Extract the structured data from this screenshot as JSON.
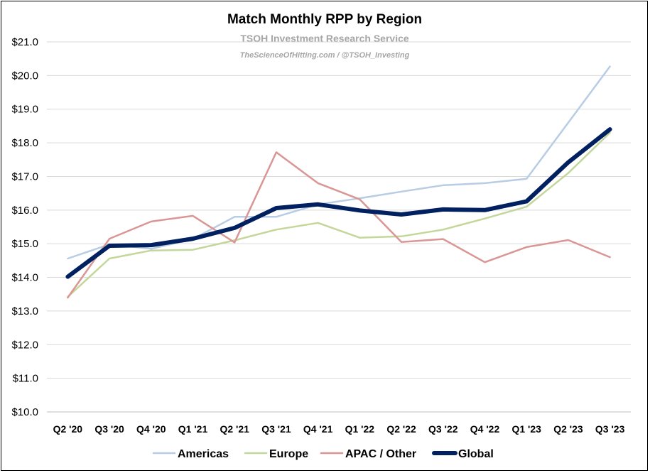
{
  "chart_data": {
    "type": "line",
    "title": "Match Monthly RPP by Region",
    "subtitle": "TSOH Investment Research Service",
    "credit": "TheScienceOfHitting.com / @TSOH_Investing",
    "xlabel": "",
    "ylabel": "",
    "ylim": [
      10.0,
      21.0
    ],
    "y_ticks": [
      "$10.0",
      "$11.0",
      "$12.0",
      "$13.0",
      "$14.0",
      "$15.0",
      "$16.0",
      "$17.0",
      "$18.0",
      "$19.0",
      "$20.0",
      "$21.0"
    ],
    "grid": true,
    "legend_position": "bottom",
    "categories": [
      "Q2 '20",
      "Q3 '20",
      "Q4 '20",
      "Q1 '21",
      "Q2 '21",
      "Q3 '21",
      "Q4 '21",
      "Q1 '22",
      "Q2 '22",
      "Q3 '22",
      "Q4 '22",
      "Q1 '23",
      "Q2 '23",
      "Q3 '23"
    ],
    "series": [
      {
        "name": "Americas",
        "color": "#b8cce4",
        "emphasis": false,
        "values": [
          14.56,
          14.98,
          14.85,
          15.14,
          15.8,
          15.8,
          16.17,
          16.35,
          16.55,
          16.74,
          16.8,
          16.93,
          18.6,
          20.27
        ]
      },
      {
        "name": "Europe",
        "color": "#c4d79b",
        "emphasis": false,
        "values": [
          13.42,
          14.56,
          14.8,
          14.82,
          15.1,
          15.42,
          15.62,
          15.18,
          15.22,
          15.42,
          15.75,
          16.1,
          17.1,
          18.3
        ]
      },
      {
        "name": "APAC / Other",
        "color": "#da9694",
        "emphasis": false,
        "values": [
          13.4,
          15.15,
          15.66,
          15.83,
          15.04,
          17.72,
          16.8,
          16.32,
          15.05,
          15.14,
          14.45,
          14.9,
          15.11,
          14.6
        ]
      },
      {
        "name": "Global",
        "color": "#002060",
        "emphasis": true,
        "values": [
          14.02,
          14.94,
          14.96,
          15.15,
          15.47,
          16.06,
          16.17,
          15.99,
          15.87,
          16.02,
          16.0,
          16.26,
          17.42,
          18.4
        ]
      }
    ]
  }
}
